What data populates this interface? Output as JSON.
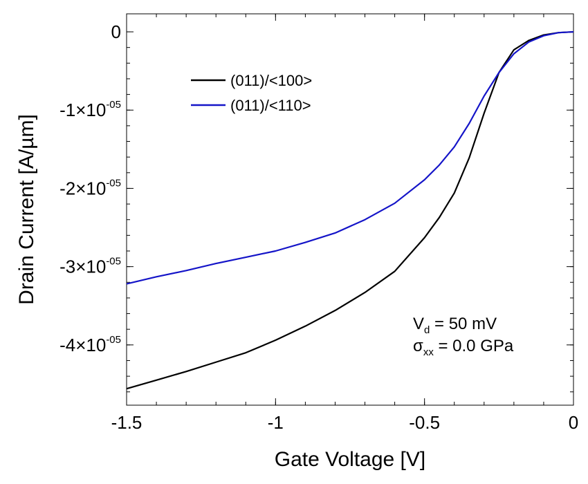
{
  "chart_data": {
    "type": "line",
    "xlabel": "Gate Voltage [V]",
    "ylabel": "Drain Current [A/µm]",
    "xlim": [
      -1.5,
      0
    ],
    "ylim": [
      -4.77e-05,
      2.3e-06
    ],
    "x_ticks": [
      {
        "value": -1.5,
        "label": "-1.5"
      },
      {
        "value": -1.0,
        "label": "-1"
      },
      {
        "value": -0.5,
        "label": "-0.5"
      },
      {
        "value": 0,
        "label": "0"
      }
    ],
    "y_ticks": [
      {
        "value": 0,
        "mantissa": "0",
        "exponent": ""
      },
      {
        "value": -1e-05,
        "mantissa": "-1×10",
        "exponent": "-05"
      },
      {
        "value": -2e-05,
        "mantissa": "-2×10",
        "exponent": "-05"
      },
      {
        "value": -3e-05,
        "mantissa": "-3×10",
        "exponent": "-05"
      },
      {
        "value": -4e-05,
        "mantissa": "-4×10",
        "exponent": "-05"
      }
    ],
    "grid": false,
    "legend_position": "top-left",
    "series": [
      {
        "name": "(011)/<100>",
        "color": "#000000",
        "points": [
          [
            -1.5,
            -4.56e-05
          ],
          [
            -1.4,
            -4.45e-05
          ],
          [
            -1.3,
            -4.34e-05
          ],
          [
            -1.2,
            -4.22e-05
          ],
          [
            -1.1,
            -4.1e-05
          ],
          [
            -1.0,
            -3.94e-05
          ],
          [
            -0.9,
            -3.76e-05
          ],
          [
            -0.8,
            -3.56e-05
          ],
          [
            -0.7,
            -3.33e-05
          ],
          [
            -0.6,
            -3.06e-05
          ],
          [
            -0.5,
            -2.63e-05
          ],
          [
            -0.45,
            -2.37e-05
          ],
          [
            -0.4,
            -2.06e-05
          ],
          [
            -0.35,
            -1.61e-05
          ],
          [
            -0.3,
            -1.04e-05
          ],
          [
            -0.25,
            -5.2e-06
          ],
          [
            -0.2,
            -2.3e-06
          ],
          [
            -0.15,
            -1.1e-06
          ],
          [
            -0.1,
            -4e-07
          ],
          [
            -0.05,
            -1e-07
          ],
          [
            0,
            0
          ]
        ]
      },
      {
        "name": "(011)/<110>",
        "color": "#1414c8",
        "points": [
          [
            -1.5,
            -3.22e-05
          ],
          [
            -1.4,
            -3.13e-05
          ],
          [
            -1.3,
            -3.05e-05
          ],
          [
            -1.2,
            -2.96e-05
          ],
          [
            -1.1,
            -2.88e-05
          ],
          [
            -1.0,
            -2.8e-05
          ],
          [
            -0.9,
            -2.69e-05
          ],
          [
            -0.8,
            -2.57e-05
          ],
          [
            -0.7,
            -2.4e-05
          ],
          [
            -0.6,
            -2.19e-05
          ],
          [
            -0.5,
            -1.89e-05
          ],
          [
            -0.45,
            -1.7e-05
          ],
          [
            -0.4,
            -1.47e-05
          ],
          [
            -0.35,
            -1.17e-05
          ],
          [
            -0.3,
            -8.2e-06
          ],
          [
            -0.25,
            -5.2e-06
          ],
          [
            -0.2,
            -2.8e-06
          ],
          [
            -0.15,
            -1.3e-06
          ],
          [
            -0.1,
            -5e-07
          ],
          [
            -0.05,
            -1e-07
          ],
          [
            0,
            0
          ]
        ]
      }
    ],
    "annotations": {
      "line1": {
        "symbol": "V",
        "sub": "d",
        "rest": " = 50 mV"
      },
      "line2": {
        "symbol": "σ",
        "sub": "xx",
        "rest": " = 0.0 GPa"
      }
    }
  }
}
